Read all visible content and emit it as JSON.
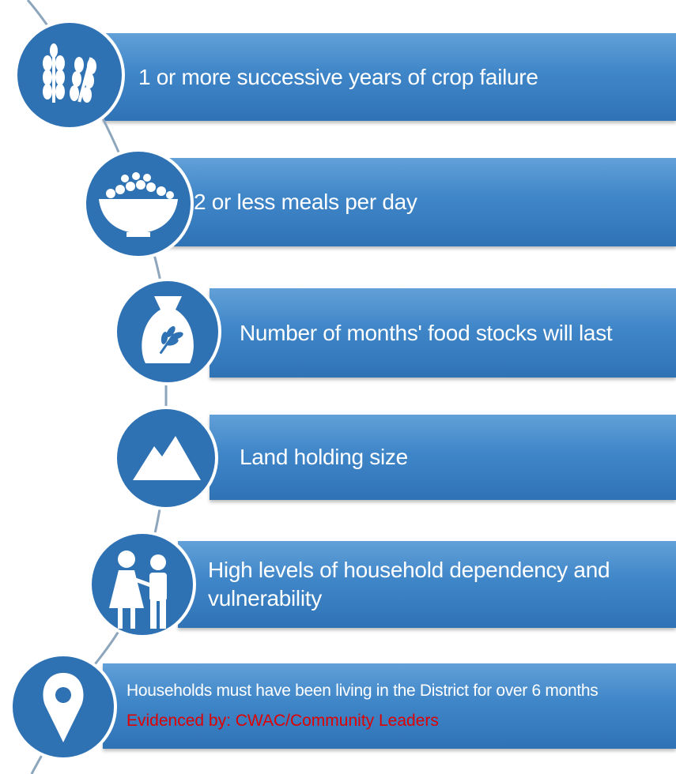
{
  "items": [
    {
      "text": "1 or more successive years of crop failure"
    },
    {
      "text": "2 or less meals per day"
    },
    {
      "text": "Number of months' food stocks will last"
    },
    {
      "text": "Land holding size"
    },
    {
      "text": "High levels of household dependency and vulnerability"
    },
    {
      "text": "Households must have been living in the District for over 6 months",
      "evidence": "Evidenced by: CWAC/Community Leaders"
    }
  ]
}
